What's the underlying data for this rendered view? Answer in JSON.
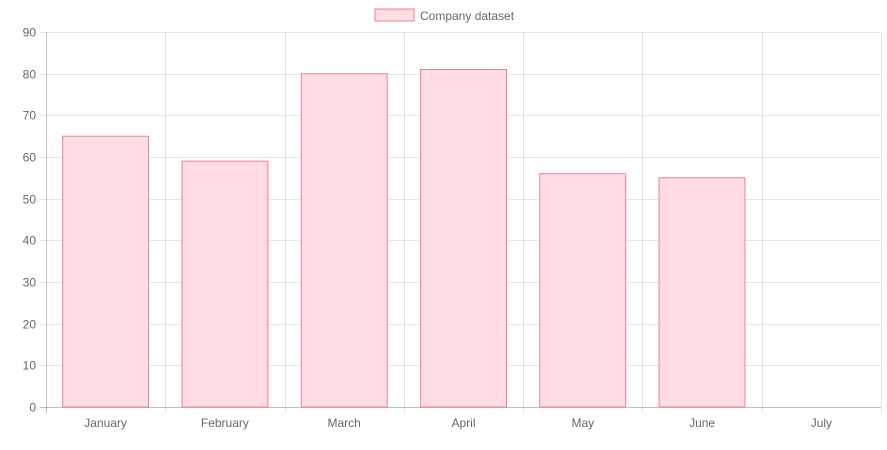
{
  "chart_data": {
    "type": "bar",
    "categories": [
      "January",
      "February",
      "March",
      "April",
      "May",
      "June",
      "July"
    ],
    "series": [
      {
        "name": "Company dataset",
        "values": [
          65,
          59,
          80,
          81,
          56,
          55,
          null
        ]
      }
    ],
    "y_ticks": [
      "0",
      "10",
      "20",
      "30",
      "40",
      "50",
      "60",
      "70",
      "80",
      "90"
    ],
    "ylim": [
      0,
      90
    ],
    "grid": true,
    "legend_position": "top",
    "colors": {
      "bar_fill": "#ffdde3",
      "bar_stroke": "#f07d98",
      "grid": "#e6e6e6",
      "axis_text": "#666666"
    }
  }
}
